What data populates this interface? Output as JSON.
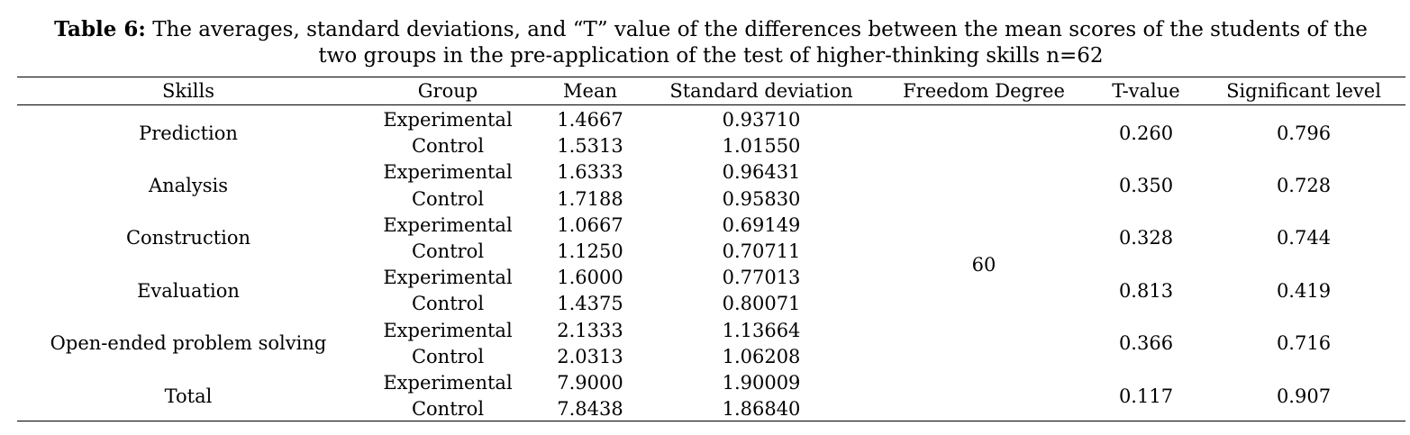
{
  "caption": {
    "label": "Table 6:",
    "line1": "The averages, standard deviations, and “T” value of the differences between the mean scores of the students of the",
    "line2": "two groups in the pre-application of the test of higher-thinking skills n=62"
  },
  "headers": [
    "Skills",
    "Group",
    "Mean",
    "Standard deviation",
    "Freedom Degree",
    "T-value",
    "Significant level"
  ],
  "freedom_degree": "60",
  "skills": [
    {
      "name": "Prediction",
      "t_value": "0.260",
      "sig": "0.796",
      "rows": [
        {
          "group": "Experimental",
          "mean": "1.4667",
          "sd": "0.93710"
        },
        {
          "group": "Control",
          "mean": "1.5313",
          "sd": "1.01550"
        }
      ]
    },
    {
      "name": "Analysis",
      "t_value": "0.350",
      "sig": "0.728",
      "rows": [
        {
          "group": "Experimental",
          "mean": "1.6333",
          "sd": "0.96431"
        },
        {
          "group": "Control",
          "mean": "1.7188",
          "sd": "0.95830"
        }
      ]
    },
    {
      "name": "Construction",
      "t_value": "0.328",
      "sig": "0.744",
      "rows": [
        {
          "group": "Experimental",
          "mean": "1.0667",
          "sd": "0.69149"
        },
        {
          "group": "Control",
          "mean": "1.1250",
          "sd": "0.70711"
        }
      ]
    },
    {
      "name": "Evaluation",
      "t_value": "0.813",
      "sig": "0.419",
      "rows": [
        {
          "group": "Experimental",
          "mean": "1.6000",
          "sd": "0.77013"
        },
        {
          "group": "Control",
          "mean": "1.4375",
          "sd": "0.80071"
        }
      ]
    },
    {
      "name": "Open-ended problem solving",
      "t_value": "0.366",
      "sig": "0.716",
      "rows": [
        {
          "group": "Experimental",
          "mean": "2.1333",
          "sd": "1.13664"
        },
        {
          "group": "Control",
          "mean": "2.0313",
          "sd": "1.06208"
        }
      ]
    },
    {
      "name": "Total",
      "t_value": "0.117",
      "sig": "0.907",
      "rows": [
        {
          "group": "Experimental",
          "mean": "7.9000",
          "sd": "1.90009"
        },
        {
          "group": "Control",
          "mean": "7.8438",
          "sd": "1.86840"
        }
      ]
    }
  ]
}
